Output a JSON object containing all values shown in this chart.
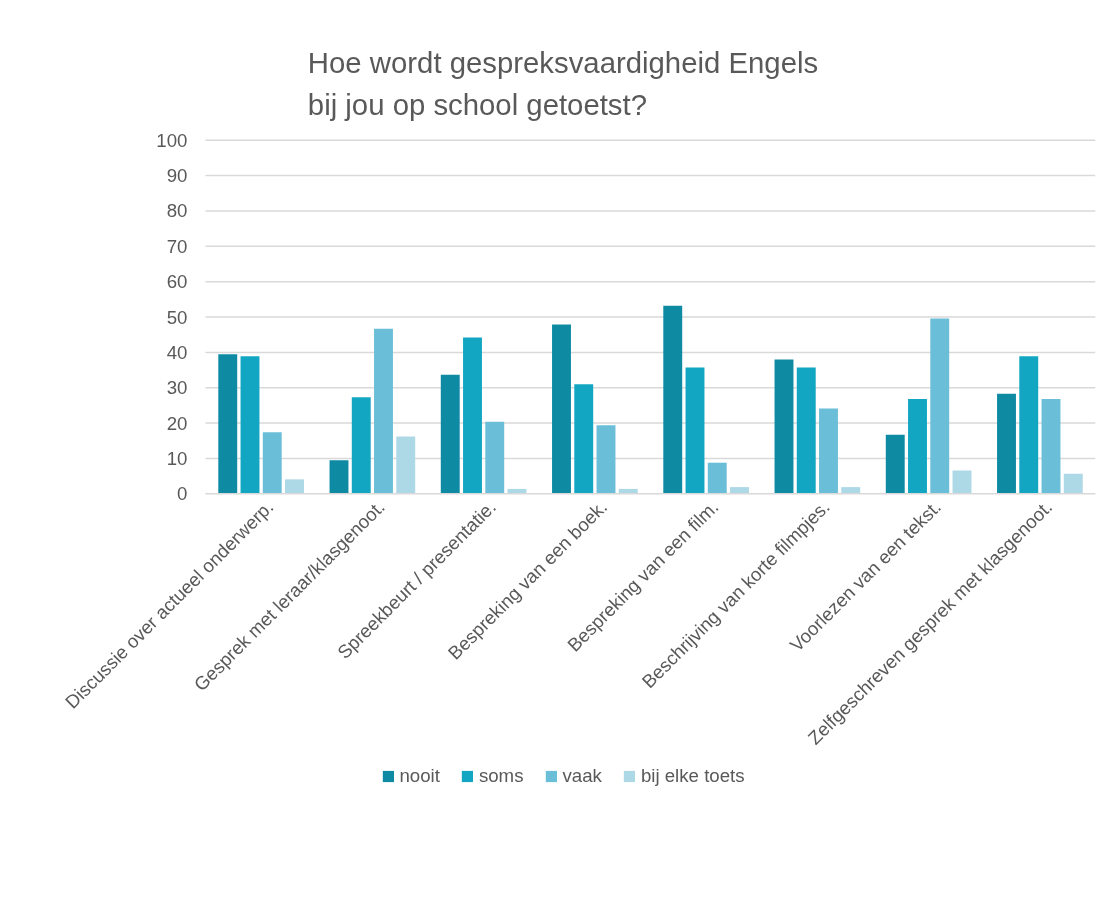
{
  "chart_data": {
    "type": "bar",
    "title": "Hoe wordt gespreksvaardigheid Engels\nbij jou op school getoetst?",
    "categories": [
      "Discussie over actueel onderwerp.",
      "Gesprek met leraar/klasgenoot.",
      "Spreekbeurt / presentatie.",
      "Bespreking van een boek.",
      "Bespreking van een film.",
      "Beschrijving van korte filmpjes.",
      "Voorlezen van een tekst.",
      "Zelfgeschreven gesprek met klasgenoot."
    ],
    "series": [
      {
        "name": "nooit",
        "color": "#0e8ba3",
        "values": [
          39.5,
          9.5,
          33.7,
          47.9,
          53.2,
          38.0,
          16.7,
          28.3
        ]
      },
      {
        "name": "soms",
        "color": "#13a6c2",
        "values": [
          38.9,
          27.3,
          44.2,
          31.0,
          35.7,
          35.7,
          26.8,
          38.9
        ]
      },
      {
        "name": "vaak",
        "color": "#6bbed7",
        "values": [
          17.4,
          46.7,
          20.4,
          19.4,
          8.8,
          24.1,
          49.6,
          26.8
        ]
      },
      {
        "name": "bij elke toets",
        "color": "#add8e6",
        "values": [
          4.1,
          16.2,
          1.4,
          1.4,
          1.9,
          1.9,
          6.6,
          5.7
        ]
      }
    ],
    "ylim": [
      0,
      100
    ],
    "yticks": [
      0,
      10,
      20,
      30,
      40,
      50,
      60,
      70,
      80,
      90,
      100
    ],
    "grid": "y",
    "legend": "bottom"
  }
}
